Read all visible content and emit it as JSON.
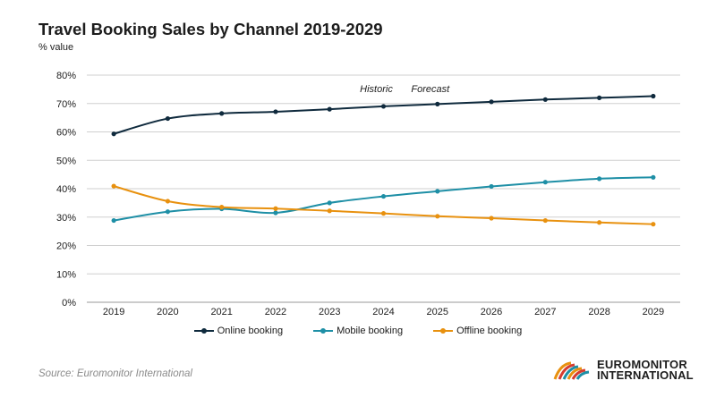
{
  "title": "Travel Booking Sales by Channel 2019-2029",
  "subtitle": "% value",
  "source": "Source: Euromonitor International",
  "logo": {
    "line1": "EUROMONITOR",
    "line2": "INTERNATIONAL"
  },
  "chart_data": {
    "type": "line",
    "title": "Travel Booking Sales by Channel 2019-2029",
    "ylabel": "% value",
    "x": [
      "2019",
      "2020",
      "2021",
      "2022",
      "2023",
      "2024",
      "2025",
      "2026",
      "2027",
      "2028",
      "2029"
    ],
    "ylim": [
      0,
      80
    ],
    "yticks": [
      "0%",
      "10%",
      "20%",
      "30%",
      "40%",
      "50%",
      "60%",
      "70%",
      "80%"
    ],
    "grid": true,
    "legend_position": "bottom",
    "annotations": [
      {
        "text": "Historic",
        "x": "2024"
      },
      {
        "text": "Forecast",
        "x": "2025"
      }
    ],
    "series": [
      {
        "name": "Online booking",
        "color": "#0f2a3d",
        "values": [
          59.3,
          64.7,
          66.5,
          67.1,
          68.0,
          69.0,
          69.8,
          70.6,
          71.4,
          72.0,
          72.6
        ]
      },
      {
        "name": "Mobile booking",
        "color": "#1e8fa6",
        "values": [
          28.8,
          31.9,
          32.9,
          31.5,
          35.0,
          37.3,
          39.1,
          40.8,
          42.3,
          43.5,
          44.0
        ]
      },
      {
        "name": "Offline booking",
        "color": "#e8910f",
        "values": [
          40.9,
          35.6,
          33.5,
          33.0,
          32.2,
          31.3,
          30.3,
          29.6,
          28.8,
          28.1,
          27.5
        ]
      }
    ]
  }
}
